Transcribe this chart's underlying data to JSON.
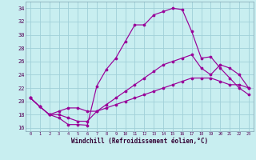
{
  "background_color": "#c8eef0",
  "grid_color": "#a0d0d8",
  "line_color": "#990099",
  "xlim": [
    -0.5,
    23.5
  ],
  "ylim": [
    15.5,
    35.0
  ],
  "xticks": [
    0,
    1,
    2,
    3,
    4,
    5,
    6,
    7,
    8,
    9,
    10,
    11,
    12,
    13,
    14,
    15,
    16,
    17,
    18,
    19,
    20,
    21,
    22,
    23
  ],
  "yticks": [
    16,
    18,
    20,
    22,
    24,
    26,
    28,
    30,
    32,
    34
  ],
  "xlabel": "Windchill (Refroidissement éolien,°C)",
  "curve1_x": [
    0,
    1,
    2,
    3,
    4,
    5,
    6,
    7,
    8,
    9,
    10,
    11,
    12,
    13,
    14,
    15,
    16,
    17,
    18,
    19,
    20,
    21,
    22,
    23
  ],
  "curve1_y": [
    20.5,
    19.2,
    18.0,
    17.5,
    16.5,
    16.5,
    16.4,
    22.3,
    24.8,
    26.5,
    29.0,
    31.5,
    31.5,
    33.0,
    33.5,
    34.0,
    33.8,
    30.5,
    26.5,
    26.7,
    25.0,
    23.5,
    22.0,
    21.0
  ],
  "curve2_x": [
    0,
    1,
    2,
    3,
    4,
    5,
    6,
    7,
    8,
    9,
    10,
    11,
    12,
    13,
    14,
    15,
    16,
    17,
    18,
    19,
    20,
    21,
    22,
    23
  ],
  "curve2_y": [
    20.5,
    19.2,
    18.0,
    18.0,
    17.5,
    17.0,
    17.0,
    18.5,
    19.5,
    20.5,
    21.5,
    22.5,
    23.5,
    24.5,
    25.5,
    26.0,
    26.5,
    27.0,
    25.0,
    24.0,
    25.5,
    25.0,
    24.0,
    22.0
  ],
  "curve3_x": [
    0,
    1,
    2,
    3,
    4,
    5,
    6,
    7,
    8,
    9,
    10,
    11,
    12,
    13,
    14,
    15,
    16,
    17,
    18,
    19,
    20,
    21,
    22,
    23
  ],
  "curve3_y": [
    20.5,
    19.2,
    18.0,
    18.5,
    19.0,
    19.0,
    18.5,
    18.5,
    19.0,
    19.5,
    20.0,
    20.5,
    21.0,
    21.5,
    22.0,
    22.5,
    23.0,
    23.5,
    23.5,
    23.5,
    23.0,
    22.5,
    22.5,
    22.0
  ]
}
